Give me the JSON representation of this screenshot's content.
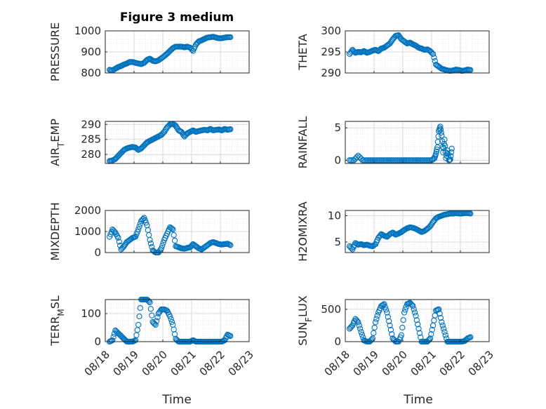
{
  "figure": {
    "title": "Figure 3 medium",
    "xlabel": "Time",
    "marker_color": "#0072BD",
    "xtick_labels": [
      "08/18",
      "08/19",
      "08/20",
      "08/21",
      "08/22",
      "08/23"
    ]
  },
  "chart_data": [
    {
      "type": "scatter",
      "name": "PRESSURE",
      "title": "Figure 3 medium",
      "ylabel": "PRESSURE",
      "xlabel": "",
      "xlim": [
        0,
        5
      ],
      "ylim": [
        800,
        1000
      ],
      "yticks": [
        800,
        900,
        1000
      ],
      "grid": true,
      "x": [
        0.15,
        0.25,
        0.35,
        0.45,
        0.55,
        0.65,
        0.75,
        0.85,
        0.95,
        1.05,
        1.15,
        1.25,
        1.35,
        1.45,
        1.55,
        1.65,
        1.75,
        1.85,
        1.95,
        2.05,
        2.15,
        2.25,
        2.35,
        2.45,
        2.55,
        2.65,
        2.75,
        2.85,
        2.95,
        3.05,
        3.15,
        3.25,
        3.35,
        3.45,
        3.55,
        3.65,
        3.75,
        3.85,
        3.95,
        4.05,
        4.15,
        4.25,
        4.35
      ],
      "y": [
        815,
        812,
        820,
        828,
        833,
        840,
        845,
        852,
        852,
        848,
        845,
        842,
        848,
        862,
        868,
        858,
        855,
        860,
        870,
        880,
        892,
        905,
        918,
        925,
        925,
        925,
        922,
        925,
        920,
        905,
        935,
        950,
        955,
        962,
        968,
        970,
        972,
        968,
        965,
        965,
        968,
        970,
        970
      ]
    },
    {
      "type": "scatter",
      "name": "THETA",
      "ylabel": "THETA",
      "xlim": [
        0,
        5
      ],
      "ylim": [
        290,
        300
      ],
      "yticks": [
        290,
        295,
        300
      ],
      "grid": true,
      "x": [
        0.15,
        0.25,
        0.35,
        0.45,
        0.55,
        0.65,
        0.75,
        0.85,
        0.95,
        1.05,
        1.15,
        1.25,
        1.35,
        1.45,
        1.55,
        1.65,
        1.75,
        1.85,
        1.95,
        2.05,
        2.15,
        2.25,
        2.35,
        2.45,
        2.55,
        2.65,
        2.75,
        2.85,
        2.95,
        3.05,
        3.15,
        3.25,
        3.35,
        3.45,
        3.55,
        3.65,
        3.75,
        3.85,
        3.95,
        4.05,
        4.15,
        4.25,
        4.35
      ],
      "y": [
        294.5,
        295.5,
        294.8,
        295.0,
        294.9,
        295.2,
        294.8,
        295.0,
        295.3,
        295.5,
        295.2,
        295.8,
        296.0,
        296.5,
        297.0,
        298.0,
        298.8,
        299.0,
        298.0,
        297.5,
        297.0,
        297.2,
        296.8,
        296.5,
        296.0,
        295.8,
        295.5,
        295.6,
        295.2,
        294.5,
        292.0,
        291.5,
        291.0,
        290.8,
        290.6,
        290.5,
        290.6,
        290.8,
        290.7,
        290.5,
        290.6,
        290.8,
        290.7
      ]
    },
    {
      "type": "scatter",
      "name": "AIR_TEMP",
      "ylabel": "AIR_TEMP",
      "xlim": [
        0,
        5
      ],
      "ylim": [
        277,
        291
      ],
      "yticks": [
        280,
        285,
        290
      ],
      "grid": true,
      "x": [
        0.15,
        0.25,
        0.35,
        0.45,
        0.55,
        0.65,
        0.75,
        0.85,
        0.95,
        1.05,
        1.15,
        1.25,
        1.35,
        1.45,
        1.55,
        1.65,
        1.75,
        1.85,
        1.95,
        2.05,
        2.15,
        2.25,
        2.35,
        2.45,
        2.55,
        2.65,
        2.75,
        2.85,
        2.95,
        3.05,
        3.15,
        3.25,
        3.35,
        3.45,
        3.55,
        3.65,
        3.75,
        3.85,
        3.95,
        4.05,
        4.15,
        4.25,
        4.35
      ],
      "y": [
        277.8,
        278.0,
        278.5,
        279.5,
        280.5,
        281.5,
        282.0,
        282.3,
        282.5,
        282.3,
        281.5,
        282.0,
        283.0,
        284.0,
        284.5,
        285.0,
        285.5,
        286.0,
        286.5,
        287.5,
        289.0,
        290.0,
        290.2,
        289.5,
        288.0,
        287.5,
        286.0,
        287.0,
        287.5,
        288.0,
        287.5,
        287.8,
        288.0,
        288.2,
        288.0,
        288.5,
        288.0,
        288.2,
        288.3,
        288.0,
        288.5,
        288.2,
        288.4
      ]
    },
    {
      "type": "scatter",
      "name": "RAINFALL",
      "ylabel": "RAINFALL",
      "xlim": [
        0,
        5
      ],
      "ylim": [
        -0.5,
        6
      ],
      "yticks": [
        0,
        5
      ],
      "grid": true,
      "x": [
        0.15,
        0.3,
        0.45,
        0.6,
        0.75,
        0.9,
        1.05,
        1.2,
        1.35,
        1.5,
        1.65,
        1.8,
        1.95,
        2.1,
        2.25,
        2.4,
        2.55,
        2.7,
        2.85,
        3.0,
        3.1,
        3.15,
        3.2,
        3.25,
        3.3,
        3.35,
        3.4,
        3.45,
        3.5,
        3.55,
        3.6,
        3.65,
        3.7
      ],
      "y": [
        0,
        0,
        0.7,
        0,
        0,
        0,
        0,
        0,
        0,
        0,
        0,
        0,
        0,
        0,
        0,
        0,
        0,
        0,
        0,
        0,
        0.3,
        1.0,
        2.0,
        4.5,
        5.2,
        3.8,
        1.2,
        3.2,
        0.3,
        1.5,
        0,
        0.1,
        1.8
      ]
    },
    {
      "type": "scatter",
      "name": "MIXDEPTH",
      "ylabel": "MIXDEPTH",
      "xlim": [
        0,
        5
      ],
      "ylim": [
        0,
        2000
      ],
      "yticks": [
        0,
        1000,
        2000
      ],
      "grid": true,
      "x": [
        0.15,
        0.25,
        0.35,
        0.45,
        0.55,
        0.65,
        0.75,
        0.85,
        0.95,
        1.05,
        1.15,
        1.25,
        1.35,
        1.45,
        1.55,
        1.65,
        1.75,
        1.85,
        1.95,
        2.05,
        2.15,
        2.25,
        2.35,
        2.45,
        2.55,
        2.65,
        2.75,
        2.85,
        2.95,
        3.05,
        3.15,
        3.25,
        3.35,
        3.45,
        3.55,
        3.65,
        3.75,
        3.85,
        3.95,
        4.05,
        4.15,
        4.25,
        4.35
      ],
      "y": [
        750,
        1100,
        950,
        700,
        150,
        300,
        500,
        600,
        700,
        750,
        1100,
        1500,
        1650,
        1300,
        600,
        100,
        0,
        0,
        200,
        600,
        900,
        1200,
        1100,
        300,
        250,
        200,
        180,
        220,
        250,
        400,
        300,
        200,
        150,
        250,
        350,
        450,
        500,
        450,
        400,
        380,
        400,
        420,
        350
      ]
    },
    {
      "type": "scatter",
      "name": "H2OMIXRA",
      "ylabel": "H2OMIXRA",
      "xlim": [
        0,
        5
      ],
      "ylim": [
        3,
        11
      ],
      "yticks": [
        5,
        10
      ],
      "grid": true,
      "x": [
        0.15,
        0.25,
        0.35,
        0.45,
        0.55,
        0.65,
        0.75,
        0.85,
        0.95,
        1.05,
        1.15,
        1.25,
        1.35,
        1.45,
        1.55,
        1.65,
        1.75,
        1.85,
        1.95,
        2.05,
        2.15,
        2.25,
        2.35,
        2.45,
        2.55,
        2.65,
        2.75,
        2.85,
        2.95,
        3.05,
        3.15,
        3.25,
        3.35,
        3.45,
        3.55,
        3.65,
        3.75,
        3.85,
        3.95,
        4.05,
        4.15,
        4.25,
        4.35
      ],
      "y": [
        4.2,
        3.6,
        4.8,
        4.5,
        4.6,
        4.4,
        4.5,
        4.3,
        4.2,
        4.6,
        5.8,
        6.5,
        6.2,
        6.0,
        6.5,
        6.8,
        6.4,
        6.6,
        6.9,
        7.3,
        7.6,
        7.8,
        7.7,
        7.5,
        7.2,
        6.9,
        7.1,
        7.5,
        8.0,
        8.8,
        9.5,
        9.8,
        10.0,
        10.2,
        10.3,
        10.4,
        10.4,
        10.5,
        10.4,
        10.4,
        10.5,
        10.5,
        10.4
      ]
    },
    {
      "type": "scatter",
      "name": "TERR_MSL",
      "ylabel": "TERR_MSL",
      "xlim": [
        0,
        5
      ],
      "ylim": [
        0,
        150
      ],
      "yticks": [
        0,
        100
      ],
      "grid": true,
      "x": [
        0.15,
        0.25,
        0.35,
        0.45,
        0.55,
        0.65,
        0.75,
        0.85,
        0.95,
        1.05,
        1.15,
        1.25,
        1.35,
        1.45,
        1.55,
        1.65,
        1.75,
        1.85,
        1.95,
        2.05,
        2.15,
        2.25,
        2.35,
        2.45,
        2.55,
        2.65,
        2.75,
        2.85,
        2.95,
        3.05,
        3.15,
        3.25,
        3.35,
        3.45,
        3.55,
        3.65,
        3.75,
        3.85,
        3.95,
        4.05,
        4.15,
        4.25,
        4.35
      ],
      "y": [
        0,
        5,
        40,
        30,
        20,
        10,
        0,
        0,
        0,
        5,
        60,
        150,
        150,
        150,
        140,
        70,
        60,
        100,
        115,
        115,
        110,
        90,
        60,
        10,
        0,
        0,
        0,
        0,
        0,
        5,
        0,
        0,
        0,
        0,
        0,
        0,
        0,
        0,
        0,
        0,
        5,
        25,
        20
      ]
    },
    {
      "type": "scatter",
      "name": "SUN_FLUX",
      "ylabel": "SUN_FLUX",
      "xlim": [
        0,
        5
      ],
      "ylim": [
        0,
        650
      ],
      "yticks": [
        0,
        500
      ],
      "grid": true,
      "x": [
        0.15,
        0.25,
        0.35,
        0.45,
        0.55,
        0.65,
        0.75,
        0.85,
        0.95,
        1.05,
        1.15,
        1.25,
        1.35,
        1.45,
        1.55,
        1.65,
        1.75,
        1.85,
        1.95,
        2.05,
        2.15,
        2.25,
        2.35,
        2.45,
        2.55,
        2.65,
        2.75,
        2.85,
        2.95,
        3.05,
        3.15,
        3.25,
        3.35,
        3.45,
        3.55,
        3.65,
        3.75,
        3.85,
        3.95,
        4.05,
        4.15,
        4.25,
        4.35
      ],
      "y": [
        200,
        250,
        350,
        300,
        150,
        20,
        0,
        0,
        50,
        300,
        450,
        550,
        580,
        450,
        250,
        50,
        0,
        0,
        100,
        450,
        580,
        600,
        550,
        400,
        200,
        0,
        0,
        0,
        50,
        250,
        480,
        500,
        300,
        150,
        0,
        0,
        0,
        0,
        0,
        0,
        10,
        50,
        70
      ]
    }
  ]
}
